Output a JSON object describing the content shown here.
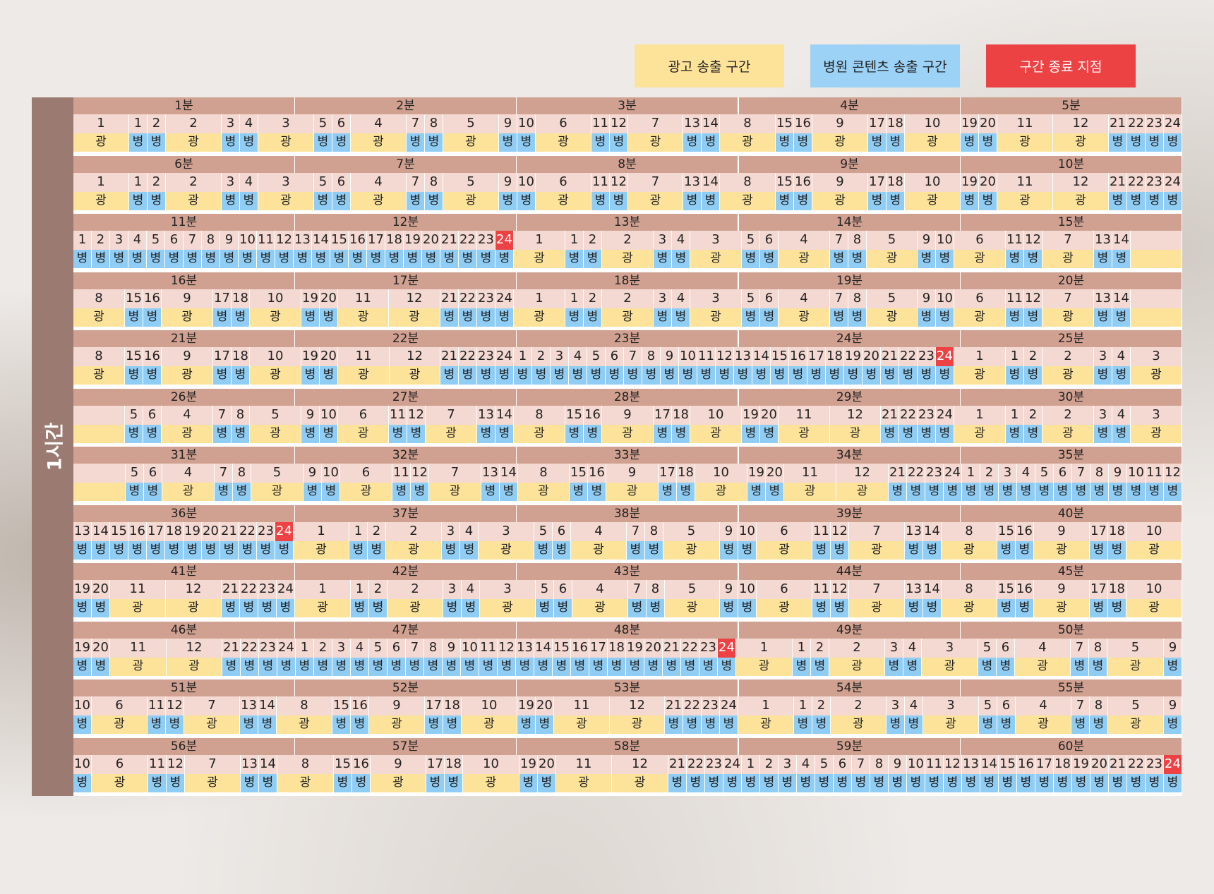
{
  "legend": {
    "ad_label": "광고 송출 구간",
    "hospital_label": "병원 콘텐츠 송출 구간",
    "end_label": "구간 종료 지점"
  },
  "hour_label": "1시간",
  "colors": {
    "ad": "#fde399",
    "hospital": "#8fcdf5",
    "end": "#ec4244",
    "header": "#d0a090",
    "number_cell": "#f4d8d2"
  },
  "segment_labels": {
    "ad": "광",
    "hospital": "병"
  },
  "minute_suffix": "분",
  "rows": [
    [
      "1 A",
      "1 H",
      "2 H",
      "2 A",
      "3 H",
      "4 H",
      "3 A",
      "5 H",
      "6 H",
      "4 A",
      "7 H",
      "8 H",
      "5 A",
      "9 H",
      "10 H",
      "6 A",
      "11 H",
      "12 H",
      "7 A",
      "13 H",
      "14 H",
      "8 A",
      "15 H",
      "16 H",
      "9 A",
      "17 H",
      "18 H",
      "10 A",
      "19 H",
      "20 H",
      "11 A",
      "12 A",
      "21 H",
      "22 H",
      "23 H",
      "24 H"
    ],
    [
      "1 A",
      "1 H",
      "2 H",
      "2 A",
      "3 H",
      "4 H",
      "3 A",
      "5 H",
      "6 H",
      "4 A",
      "7 H",
      "8 H",
      "5 A",
      "9 H",
      "10 H",
      "6 A",
      "11 H",
      "12 H",
      "7 A",
      "13 H",
      "14 H",
      "8 A",
      "15 H",
      "16 H",
      "9 A",
      "17 H",
      "18 H",
      "10 A",
      "19 H",
      "20 H",
      "11 A",
      "12 A",
      "21 H",
      "22 H",
      "23 H",
      "24 H"
    ],
    [
      "1 H",
      "2 H",
      "3 H",
      "4 H",
      "5 H",
      "6 H",
      "7 H",
      "8 H",
      "9 H",
      "10 H",
      "11 H",
      "12 H",
      "13 H",
      "14 H",
      "15 H",
      "16 H",
      "17 H",
      "18 H",
      "19 H",
      "20 H",
      "21 H",
      "22 H",
      "23 H",
      "24 H E",
      "1 A",
      "1 H",
      "2 H",
      "2 A",
      "3 H",
      "4 H",
      "3 A",
      "5 H",
      "6 H",
      "4 A",
      "7 H",
      "8 H",
      "5 A",
      "9 H",
      "10 H",
      "6 A",
      "11 H",
      "12 H",
      "7 A",
      "13 H",
      "14 H",
      "- A"
    ],
    [
      "8 A",
      "15 H",
      "16 H",
      "9 A",
      "17 H",
      "18 H",
      "10 A",
      "19 H",
      "20 H",
      "11 A",
      "12 A",
      "21 H",
      "22 H",
      "23 H",
      "24 H",
      "1 A",
      "1 H",
      "2 H",
      "2 A",
      "3 H",
      "4 H",
      "3 A",
      "5 H",
      "6 H",
      "4 A",
      "7 H",
      "8 H",
      "5 A",
      "9 H",
      "10 H",
      "6 A",
      "11 H",
      "12 H",
      "7 A",
      "13 H",
      "14 H",
      "- A"
    ],
    [
      "8 A",
      "15 H",
      "16 H",
      "9 A",
      "17 H",
      "18 H",
      "10 A",
      "19 H",
      "20 H",
      "11 A",
      "12 A",
      "21 H",
      "22 H",
      "23 H",
      "24 H",
      "1 H",
      "2 H",
      "3 H",
      "4 H",
      "5 H",
      "6 H",
      "7 H",
      "8 H",
      "9 H",
      "10 H",
      "11 H",
      "12 H",
      "13 H",
      "14 H",
      "15 H",
      "16 H",
      "17 H",
      "18 H",
      "19 H",
      "20 H",
      "21 H",
      "22 H",
      "23 H",
      "24 H E",
      "1 A",
      "1 H",
      "2 H",
      "2 A",
      "3 H",
      "4 H",
      "3 A"
    ],
    [
      "- A",
      "5 H",
      "6 H",
      "4 A",
      "7 H",
      "8 H",
      "5 A",
      "9 H",
      "10 H",
      "6 A",
      "11 H",
      "12 H",
      "7 A",
      "13 H",
      "14 H",
      "8 A",
      "15 H",
      "16 H",
      "9 A",
      "17 H",
      "18 H",
      "10 A",
      "19 H",
      "20 H",
      "11 A",
      "12 A",
      "21 H",
      "22 H",
      "23 H",
      "24 H",
      "1 A",
      "1 H",
      "2 H",
      "2 A",
      "3 H",
      "4 H",
      "3 A"
    ],
    [
      "- A",
      "5 H",
      "6 H",
      "4 A",
      "7 H",
      "8 H",
      "5 A",
      "9 H",
      "10 H",
      "6 A",
      "11 H",
      "12 H",
      "7 A",
      "13 H",
      "14 H",
      "8 A",
      "15 H",
      "16 H",
      "9 A",
      "17 H",
      "18 H",
      "10 A",
      "19 H",
      "20 H",
      "11 A",
      "12 A",
      "21 H",
      "22 H",
      "23 H",
      "24 H",
      "1 H",
      "2 H",
      "3 H",
      "4 H",
      "5 H",
      "6 H",
      "7 H",
      "8 H",
      "9 H",
      "10 H",
      "11 H",
      "12 H"
    ],
    [
      "13 H",
      "14 H",
      "15 H",
      "16 H",
      "17 H",
      "18 H",
      "19 H",
      "20 H",
      "21 H",
      "22 H",
      "23 H",
      "24 H E",
      "1 A",
      "1 H",
      "2 H",
      "2 A",
      "3 H",
      "4 H",
      "3 A",
      "5 H",
      "6 H",
      "4 A",
      "7 H",
      "8 H",
      "5 A",
      "9 H",
      "10 H",
      "6 A",
      "11 H",
      "12 H",
      "7 A",
      "13 H",
      "14 H",
      "8 A",
      "15 H",
      "16 H",
      "9 A",
      "17 H",
      "18 H",
      "10 A"
    ],
    [
      "19 H",
      "20 H",
      "11 A",
      "12 A",
      "21 H",
      "22 H",
      "23 H",
      "24 H",
      "1 A",
      "1 H",
      "2 H",
      "2 A",
      "3 H",
      "4 H",
      "3 A",
      "5 H",
      "6 H",
      "4 A",
      "7 H",
      "8 H",
      "5 A",
      "9 H",
      "10 H",
      "6 A",
      "11 H",
      "12 H",
      "7 A",
      "13 H",
      "14 H",
      "8 A",
      "15 H",
      "16 H",
      "9 A",
      "17 H",
      "18 H",
      "10 A"
    ],
    [
      "19 H",
      "20 H",
      "11 A",
      "12 A",
      "21 H",
      "22 H",
      "23 H",
      "24 H",
      "1 H",
      "2 H",
      "3 H",
      "4 H",
      "5 H",
      "6 H",
      "7 H",
      "8 H",
      "9 H",
      "10 H",
      "11 H",
      "12 H",
      "13 H",
      "14 H",
      "15 H",
      "16 H",
      "17 H",
      "18 H",
      "19 H",
      "20 H",
      "21 H",
      "22 H",
      "23 H",
      "24 H E",
      "1 A",
      "1 H",
      "2 H",
      "2 A",
      "3 H",
      "4 H",
      "3 A",
      "5 H",
      "6 H",
      "4 A",
      "7 H",
      "8 H",
      "5 A",
      "9 H"
    ],
    [
      "10 H",
      "6 A",
      "11 H",
      "12 H",
      "7 A",
      "13 H",
      "14 H",
      "8 A",
      "15 H",
      "16 H",
      "9 A",
      "17 H",
      "18 H",
      "10 A",
      "19 H",
      "20 H",
      "11 A",
      "12 A",
      "21 H",
      "22 H",
      "23 H",
      "24 H",
      "1 A",
      "1 H",
      "2 H",
      "2 A",
      "3 H",
      "4 H",
      "3 A",
      "5 H",
      "6 H",
      "4 A",
      "7 H",
      "8 H",
      "5 A",
      "9 H"
    ],
    [
      "10 H",
      "6 A",
      "11 H",
      "12 H",
      "7 A",
      "13 H",
      "14 H",
      "8 A",
      "15 H",
      "16 H",
      "9 A",
      "17 H",
      "18 H",
      "10 A",
      "19 H",
      "20 H",
      "11 A",
      "12 A",
      "21 H",
      "22 H",
      "23 H",
      "24 H",
      "1 H",
      "2 H",
      "3 H",
      "4 H",
      "5 H",
      "6 H",
      "7 H",
      "8 H",
      "9 H",
      "10 H",
      "11 H",
      "12 H",
      "13 H",
      "14 H",
      "15 H",
      "16 H",
      "17 H",
      "18 H",
      "19 H",
      "20 H",
      "21 H",
      "22 H",
      "23 H",
      "24 H E"
    ]
  ]
}
